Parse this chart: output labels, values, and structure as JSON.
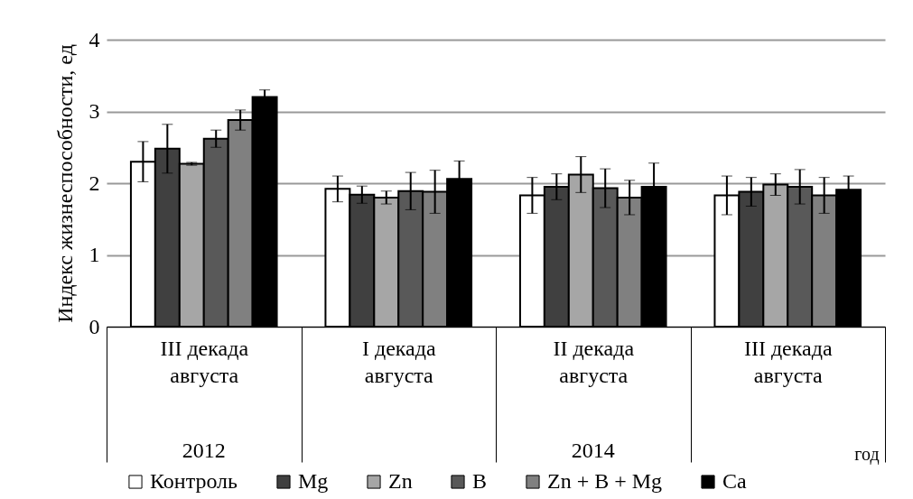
{
  "chart_data": {
    "type": "bar",
    "ylabel": "Индекс жизнеспособности, ед",
    "categories": [
      "III декада\nавгуста",
      "I декада\nавгуста",
      "II декада\nавгуста",
      "III декада\nавгуста"
    ],
    "series": [
      {
        "name": "Контроль",
        "color": "#ffffff",
        "values": [
          2.3,
          1.92,
          1.83,
          1.83
        ],
        "errors": [
          0.28,
          0.18,
          0.25,
          0.27
        ]
      },
      {
        "name": "Mg",
        "color": "#404040",
        "values": [
          2.48,
          1.84,
          1.95,
          1.88
        ],
        "errors": [
          0.34,
          0.12,
          0.18,
          0.2
        ]
      },
      {
        "name": "Zn",
        "color": "#a6a6a6",
        "values": [
          2.27,
          1.8,
          2.12,
          1.98
        ],
        "errors": [
          0.02,
          0.09,
          0.25,
          0.15
        ]
      },
      {
        "name": "B",
        "color": "#595959",
        "values": [
          2.62,
          1.89,
          1.93,
          1.95
        ],
        "errors": [
          0.12,
          0.26,
          0.27,
          0.24
        ]
      },
      {
        "name": "Zn + B + Mg",
        "color": "#808080",
        "values": [
          2.88,
          1.88,
          1.8,
          1.83
        ],
        "errors": [
          0.14,
          0.3,
          0.24,
          0.25
        ]
      },
      {
        "name": "Ca",
        "color": "#000000",
        "values": [
          3.2,
          2.06,
          1.95,
          1.91
        ],
        "errors": [
          0.1,
          0.25,
          0.33,
          0.19
        ]
      }
    ],
    "ylim": [
      0,
      4
    ],
    "yticks": [
      0,
      1,
      2,
      3,
      4
    ],
    "grid": "y",
    "legend": "bottom",
    "annotations": [
      "2012",
      "2014",
      "год"
    ]
  }
}
